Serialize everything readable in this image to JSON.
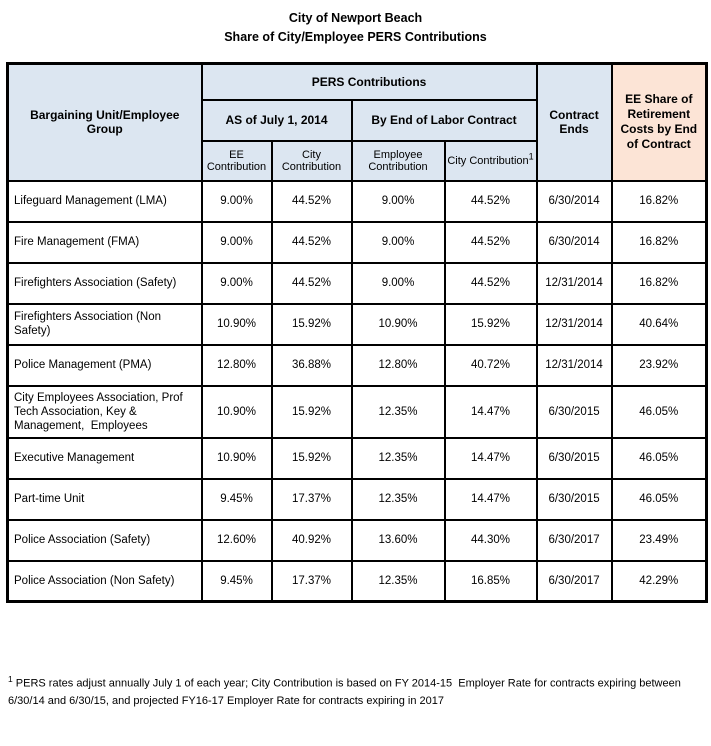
{
  "title": {
    "line1": "City of Newport Beach",
    "line2": "Share of City/Employee PERS Contributions"
  },
  "colors": {
    "header_blue": "#DCE6F1",
    "header_peach": "#FCE4D6",
    "border": "#000000"
  },
  "table": {
    "headers": {
      "bargaining_unit": "Bargaining Unit/Employee Group",
      "pers_contributions": "PERS Contributions",
      "as_of_july_2014": "AS of July 1, 2014",
      "by_end_of_contract": "By End of Labor Contract",
      "ee_contribution": "EE Contribution",
      "city_contribution": "City Contribution",
      "employee_contribution": "Employee Contribution",
      "city_contribution_end": "City Contribution",
      "city_contribution_footnote_ref": "1",
      "contract_ends": "Contract Ends",
      "ee_share": "EE Share of Retirement Costs by End of Contract"
    },
    "rows": [
      {
        "group": "Lifeguard Management (LMA)",
        "ee_july2014": "9.00%",
        "city_july2014": "44.52%",
        "employee_end": "9.00%",
        "city_end": "44.52%",
        "contract_ends": "6/30/2014",
        "ee_share": "16.82%"
      },
      {
        "group": "Fire Management (FMA)",
        "ee_july2014": "9.00%",
        "city_july2014": "44.52%",
        "employee_end": "9.00%",
        "city_end": "44.52%",
        "contract_ends": "6/30/2014",
        "ee_share": "16.82%"
      },
      {
        "group": "Firefighters Association (Safety)",
        "ee_july2014": "9.00%",
        "city_july2014": "44.52%",
        "employee_end": "9.00%",
        "city_end": "44.52%",
        "contract_ends": "12/31/2014",
        "ee_share": "16.82%"
      },
      {
        "group": "Firefighters Association (Non Safety)",
        "ee_july2014": "10.90%",
        "city_july2014": "15.92%",
        "employee_end": "10.90%",
        "city_end": "15.92%",
        "contract_ends": "12/31/2014",
        "ee_share": "40.64%"
      },
      {
        "group": "Police Management (PMA)",
        "ee_july2014": "12.80%",
        "city_july2014": "36.88%",
        "employee_end": "12.80%",
        "city_end": "40.72%",
        "contract_ends": "12/31/2014",
        "ee_share": "23.92%"
      },
      {
        "group": "City Employees Association, Prof Tech Association, Key & Management,  Employees",
        "ee_july2014": "10.90%",
        "city_july2014": "15.92%",
        "employee_end": "12.35%",
        "city_end": "14.47%",
        "contract_ends": "6/30/2015",
        "ee_share": "46.05%"
      },
      {
        "group": "Executive Management",
        "ee_july2014": "10.90%",
        "city_july2014": "15.92%",
        "employee_end": "12.35%",
        "city_end": "14.47%",
        "contract_ends": "6/30/2015",
        "ee_share": "46.05%"
      },
      {
        "group": "Part-time Unit",
        "ee_july2014": "9.45%",
        "city_july2014": "17.37%",
        "employee_end": "12.35%",
        "city_end": "14.47%",
        "contract_ends": "6/30/2015",
        "ee_share": "46.05%"
      },
      {
        "group": "Police Association (Safety)",
        "ee_july2014": "12.60%",
        "city_july2014": "40.92%",
        "employee_end": "13.60%",
        "city_end": "44.30%",
        "contract_ends": "6/30/2017",
        "ee_share": "23.49%"
      },
      {
        "group": "Police Association (Non Safety)",
        "ee_july2014": "9.45%",
        "city_july2014": "17.37%",
        "employee_end": "12.35%",
        "city_end": "16.85%",
        "contract_ends": "6/30/2017",
        "ee_share": "42.29%"
      }
    ]
  },
  "footnote": {
    "ref": "1",
    "text": "PERS rates adjust annually July 1 of each year; City Contribution is based on FY 2014-15  Employer Rate for contracts expiring between 6/30/14 and 6/30/15, and projected FY16-17 Employer Rate for contracts expiring in 2017"
  }
}
